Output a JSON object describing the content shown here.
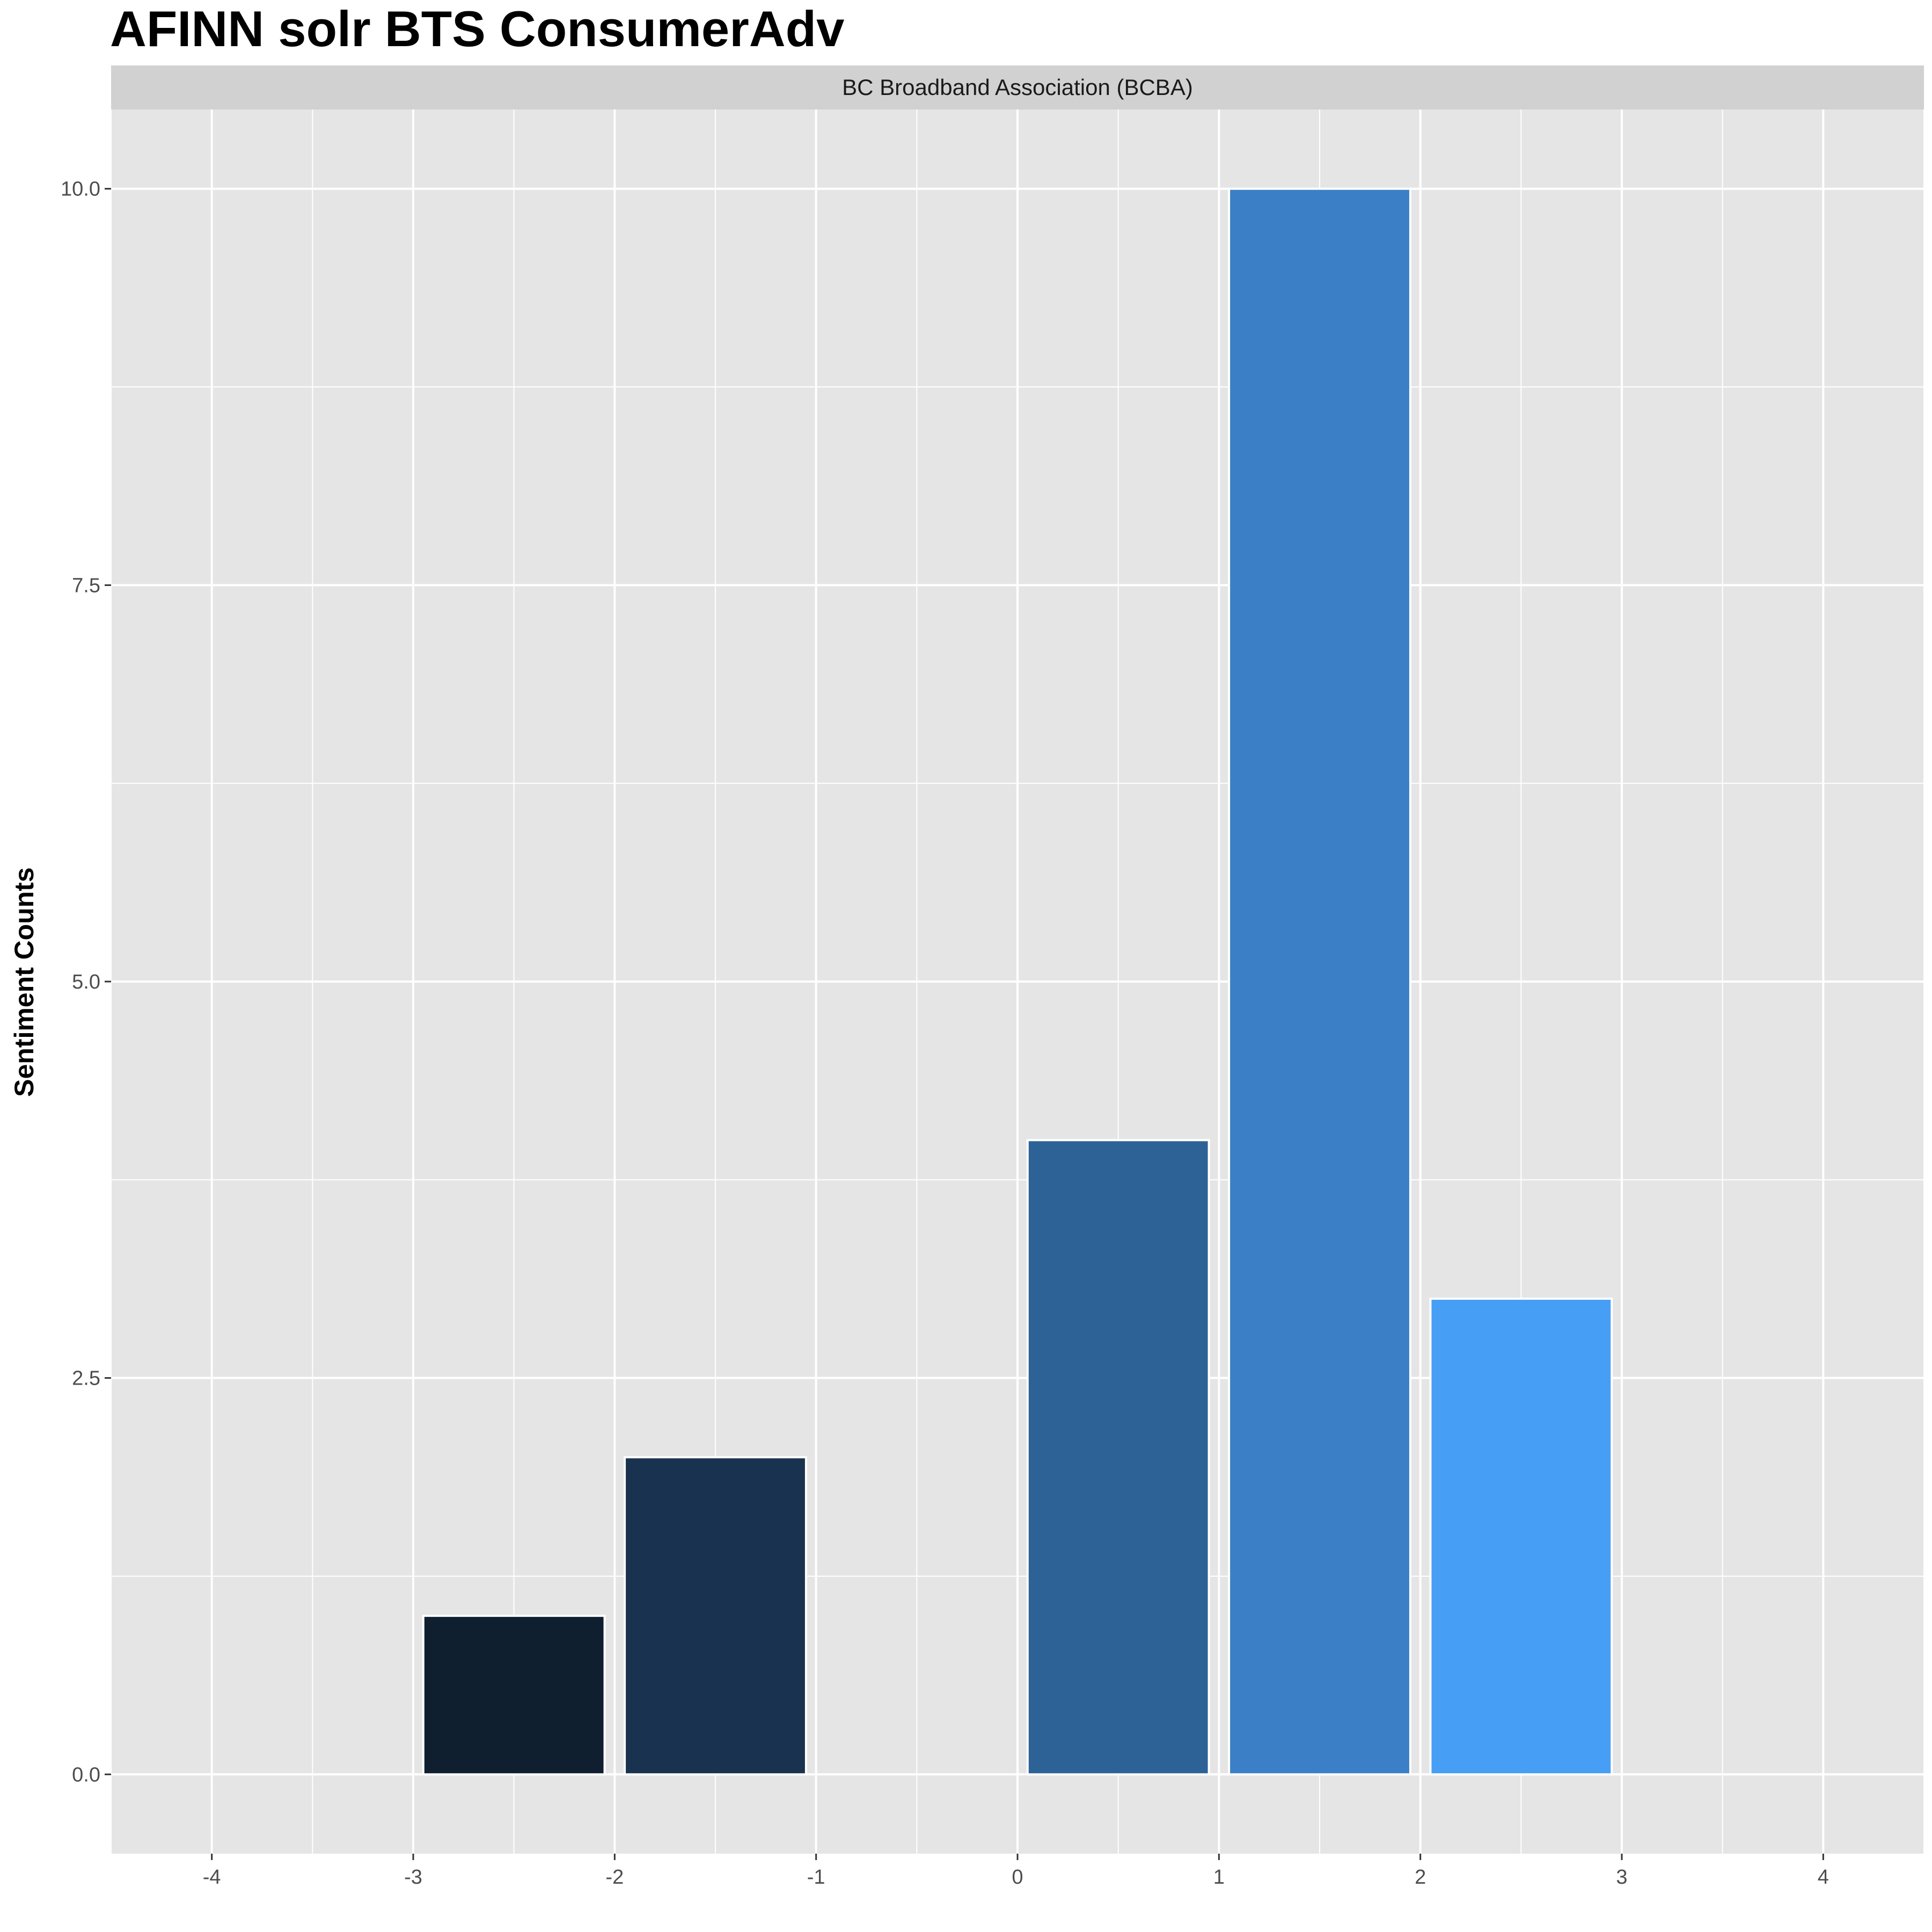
{
  "chart_data": {
    "type": "bar",
    "title": "AFINN solr BTS ConsumerAdv",
    "facet_label": "BC Broadband Association (BCBA)",
    "xlabel": "",
    "ylabel": "Sentiment Counts",
    "x": [
      -3,
      -2,
      0,
      1,
      2
    ],
    "values": [
      1,
      2,
      4,
      10,
      3
    ],
    "bar_colors": [
      "#101f30",
      "#19324f",
      "#2d6296",
      "#3b80c6",
      "#479ef5"
    ],
    "xlim": [
      -4.5,
      4.5
    ],
    "ylim": [
      -0.5,
      10.5
    ],
    "x_ticks": [
      -4,
      -3,
      -2,
      -1,
      0,
      1,
      2,
      3,
      4
    ],
    "x_tick_labels": [
      "-4",
      "-3",
      "-2",
      "-1",
      "0",
      "1",
      "2",
      "3",
      "4"
    ],
    "y_ticks": [
      0,
      2.5,
      5,
      7.5,
      10
    ],
    "y_tick_labels": [
      "0.0",
      "2.5",
      "5.0",
      "7.5",
      "10.0"
    ],
    "grid": true,
    "panel_background": "#e5e5e5",
    "strip_background": "#d1d1d1",
    "grid_color": "#ffffff"
  }
}
